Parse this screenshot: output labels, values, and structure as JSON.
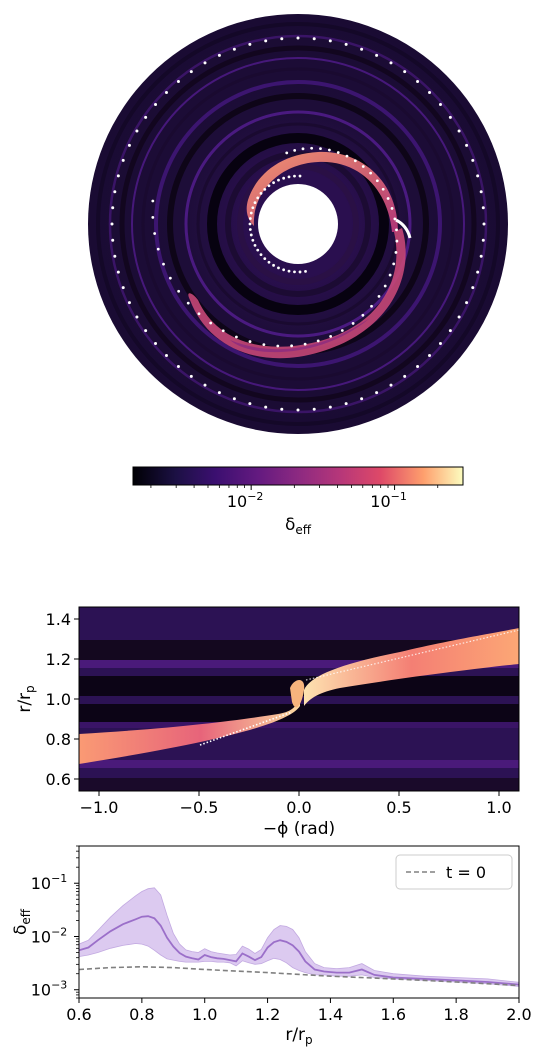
{
  "colors": {
    "colormap": "magma",
    "curve": "#9b6fc9",
    "band": "#d7c1ee",
    "dashed": "#808080",
    "track": "#ffffff"
  },
  "chart_data": [
    {
      "type": "heatmap",
      "projection": "polar",
      "colorbar": {
        "scale": "log",
        "range": [
          0.0015,
          0.3
        ],
        "ticks": [
          0.01,
          0.1
        ],
        "tick_labels": {
          "base": "10",
          "exps": [
            "−2",
            "−1"
          ]
        },
        "label": {
          "main": "δ",
          "sub": "eff"
        }
      },
      "grid": false
    },
    {
      "type": "heatmap",
      "xlabel": "−ϕ (rad)",
      "ylabel": {
        "main": "r/r",
        "sub": "p"
      },
      "xlim": [
        -1.1,
        1.1
      ],
      "ylim": [
        0.54,
        1.46
      ],
      "xticks": [
        -1.0,
        -0.5,
        0.0,
        0.5,
        1.0
      ],
      "xtick_labels": [
        "−1.0",
        "−0.5",
        "0.0",
        "0.5",
        "1.0"
      ],
      "yticks": [
        0.6,
        0.8,
        1.0,
        1.2,
        1.4
      ],
      "ytick_labels": [
        "0.6",
        "0.8",
        "1.0",
        "1.2",
        "1.4"
      ],
      "colormap": "magma",
      "grid": false
    },
    {
      "type": "line",
      "xlabel": {
        "main": "r/r",
        "sub": "p"
      },
      "ylabel": {
        "main": "δ",
        "sub": "eff"
      },
      "xlim": [
        0.6,
        2.0
      ],
      "ylim": [
        0.0007,
        0.5
      ],
      "yscale": "log",
      "xticks": [
        0.6,
        0.8,
        1.0,
        1.2,
        1.4,
        1.6,
        1.8,
        2.0
      ],
      "xtick_labels": [
        "0.6",
        "0.8",
        "1.0",
        "1.2",
        "1.4",
        "1.6",
        "1.8",
        "2.0"
      ],
      "yticks": [
        0.001,
        0.01,
        0.1
      ],
      "ytick_labels": {
        "base": "10",
        "exps": [
          "−3",
          "−2",
          "−1"
        ]
      },
      "legend": {
        "position": "top-right",
        "entries": [
          "t = 0"
        ]
      },
      "grid": false,
      "series": [
        {
          "x": [
            0.6,
            0.63,
            0.66,
            0.7,
            0.74,
            0.78,
            0.8,
            0.82,
            0.84,
            0.86,
            0.88,
            0.9,
            0.92,
            0.94,
            0.96,
            0.98,
            1.0,
            1.02,
            1.04,
            1.06,
            1.08,
            1.1,
            1.12,
            1.14,
            1.16,
            1.18,
            1.2,
            1.22,
            1.24,
            1.26,
            1.28,
            1.3,
            1.32,
            1.35,
            1.38,
            1.42,
            1.46,
            1.5,
            1.54,
            1.6,
            1.7,
            1.8,
            1.9,
            2.0
          ],
          "y": [
            0.0055,
            0.0062,
            0.0085,
            0.0125,
            0.017,
            0.021,
            0.0235,
            0.024,
            0.022,
            0.016,
            0.0095,
            0.0065,
            0.0049,
            0.0042,
            0.0039,
            0.0037,
            0.0045,
            0.0041,
            0.0039,
            0.0038,
            0.0036,
            0.0034,
            0.0048,
            0.0042,
            0.0036,
            0.0041,
            0.0062,
            0.0078,
            0.0085,
            0.0079,
            0.0068,
            0.0052,
            0.0034,
            0.0024,
            0.0022,
            0.0021,
            0.0021,
            0.0024,
            0.0019,
            0.0017,
            0.0016,
            0.0015,
            0.0014,
            0.00125
          ],
          "y_lower": [
            0.0042,
            0.0045,
            0.005,
            0.006,
            0.0068,
            0.0074,
            0.0072,
            0.0066,
            0.0055,
            0.0045,
            0.0038,
            0.0036,
            0.0034,
            0.0033,
            0.0033,
            0.0033,
            0.0034,
            0.0034,
            0.0033,
            0.0033,
            0.0032,
            0.0028,
            0.0035,
            0.0032,
            0.003,
            0.0031,
            0.0035,
            0.0039,
            0.0037,
            0.0032,
            0.0026,
            0.0023,
            0.0021,
            0.0019,
            0.0019,
            0.0018,
            0.0018,
            0.0019,
            0.0017,
            0.0016,
            0.0015,
            0.0014,
            0.0013,
            0.00115
          ],
          "y_upper": [
            0.0072,
            0.0085,
            0.013,
            0.023,
            0.038,
            0.058,
            0.07,
            0.079,
            0.082,
            0.06,
            0.025,
            0.0115,
            0.0072,
            0.0056,
            0.0052,
            0.005,
            0.0059,
            0.0052,
            0.0049,
            0.0047,
            0.0045,
            0.0046,
            0.0066,
            0.0058,
            0.0048,
            0.0057,
            0.0095,
            0.0135,
            0.016,
            0.0155,
            0.0135,
            0.0095,
            0.0052,
            0.0031,
            0.0026,
            0.0025,
            0.0026,
            0.0031,
            0.0023,
            0.002,
            0.0018,
            0.0017,
            0.0016,
            0.00138
          ]
        },
        {
          "name": "t = 0",
          "style": "dashed",
          "x": [
            0.6,
            0.7,
            0.8,
            0.9,
            1.0,
            1.2,
            1.4,
            1.6,
            1.8,
            2.0
          ],
          "y": [
            0.0024,
            0.0026,
            0.0027,
            0.0026,
            0.0024,
            0.0021,
            0.0018,
            0.0016,
            0.0014,
            0.0012
          ]
        }
      ]
    }
  ]
}
